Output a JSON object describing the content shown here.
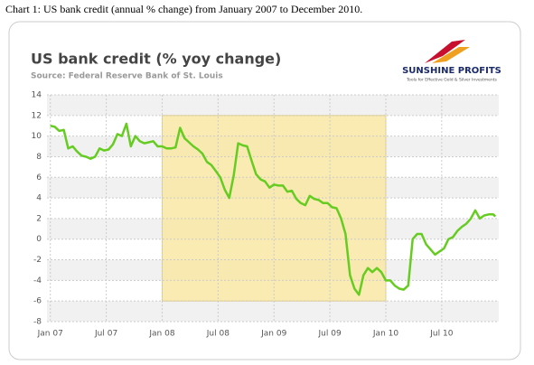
{
  "caption": "Chart 1: US bank credit (annual % change) from January 2007 to December 2010.",
  "logo": {
    "name": "SUNSHINE PROFITS",
    "tagline": "Tools for Effective Gold & Silver Investments"
  },
  "chart_data": {
    "type": "line",
    "title": "US bank credit (% yoy change)",
    "subtitle": "Source: Federal Reserve Bank of St. Louis",
    "x": [
      2007.0,
      2007.04,
      2007.08,
      2007.12,
      2007.16,
      2007.2,
      2007.24,
      2007.28,
      2007.32,
      2007.36,
      2007.4,
      2007.44,
      2007.48,
      2007.52,
      2007.56,
      2007.6,
      2007.64,
      2007.68,
      2007.72,
      2007.76,
      2007.8,
      2007.84,
      2007.88,
      2007.92,
      2007.96,
      2008.0,
      2008.04,
      2008.08,
      2008.12,
      2008.16,
      2008.2,
      2008.24,
      2008.28,
      2008.32,
      2008.36,
      2008.4,
      2008.44,
      2008.48,
      2008.52,
      2008.56,
      2008.6,
      2008.64,
      2008.68,
      2008.72,
      2008.76,
      2008.8,
      2008.84,
      2008.88,
      2008.92,
      2008.96,
      2009.0,
      2009.04,
      2009.08,
      2009.12,
      2009.16,
      2009.2,
      2009.24,
      2009.28,
      2009.32,
      2009.36,
      2009.4,
      2009.44,
      2009.48,
      2009.52,
      2009.56,
      2009.6,
      2009.64,
      2009.68,
      2009.72,
      2009.76,
      2009.8,
      2009.84,
      2009.88,
      2009.92,
      2009.96,
      2010.0,
      2010.04,
      2010.08,
      2010.12,
      2010.16,
      2010.2,
      2010.24,
      2010.28,
      2010.32,
      2010.36,
      2010.4,
      2010.44,
      2010.48,
      2010.52,
      2010.56,
      2010.6,
      2010.64,
      2010.68,
      2010.72,
      2010.76,
      2010.8,
      2010.84,
      2010.88,
      2010.92,
      2010.96,
      2010.98
    ],
    "series": [
      {
        "name": "US bank credit",
        "color": "#66cc22",
        "values": [
          11.0,
          10.9,
          10.5,
          10.6,
          8.8,
          9.0,
          8.5,
          8.1,
          8.0,
          7.8,
          8.0,
          8.8,
          8.6,
          8.7,
          9.2,
          10.2,
          10.0,
          11.2,
          9.0,
          10.0,
          9.5,
          9.3,
          9.4,
          9.5,
          9.0,
          9.0,
          8.8,
          8.8,
          8.9,
          10.8,
          9.8,
          9.4,
          9.0,
          8.7,
          8.3,
          7.5,
          7.2,
          6.6,
          6.0,
          4.8,
          4.0,
          6.2,
          9.3,
          9.1,
          9.0,
          7.6,
          6.3,
          5.8,
          5.6,
          5.0,
          5.3,
          5.2,
          5.2,
          4.6,
          4.7,
          3.9,
          3.5,
          3.3,
          4.2,
          3.9,
          3.8,
          3.5,
          3.5,
          3.1,
          3.0,
          2.0,
          0.5,
          -3.5,
          -4.8,
          -5.4,
          -3.5,
          -2.8,
          -3.2,
          -2.8,
          -3.2,
          -4.0,
          -4.0,
          -4.5,
          -4.8,
          -4.9,
          -4.5,
          0.0,
          0.5,
          0.5,
          -0.5,
          -1.0,
          -1.5,
          -1.2,
          -0.9,
          0.0,
          0.2,
          0.8,
          1.2,
          1.5,
          2.0,
          2.8,
          2.0,
          2.3,
          2.4,
          2.4,
          2.2
        ]
      }
    ],
    "xlim": [
      2006.97,
      2011.01
    ],
    "xticks": [
      {
        "value": 2007,
        "label": "Jan 07"
      },
      {
        "value": 2007.5,
        "label": "Jul 07"
      },
      {
        "value": 2008,
        "label": "Jan 08"
      },
      {
        "value": 2008.5,
        "label": "Jul 08"
      },
      {
        "value": 2009,
        "label": "Jan 09"
      },
      {
        "value": 2009.5,
        "label": "Jul 09"
      },
      {
        "value": 2010,
        "label": "Jan 10"
      },
      {
        "value": 2010.5,
        "label": "Jul 10"
      }
    ],
    "ylim": [
      -8,
      14
    ],
    "yticks": [
      -8,
      -6,
      -4,
      -2,
      0,
      2,
      4,
      6,
      8,
      10,
      12,
      14
    ],
    "grid": true,
    "shaded_region": {
      "x": [
        2008,
        2010
      ],
      "y": [
        -6,
        12
      ],
      "color": "#f8e7a4"
    }
  }
}
